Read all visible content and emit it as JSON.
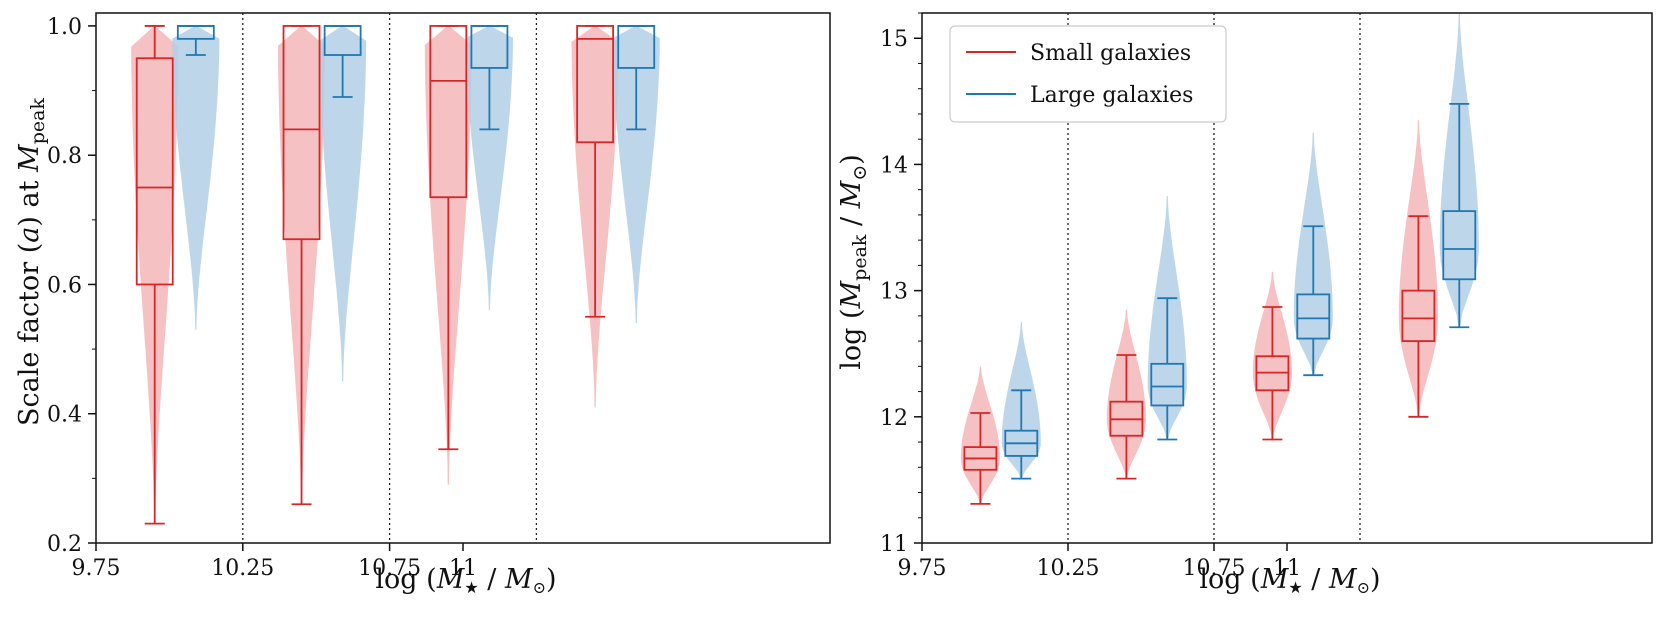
{
  "colors": {
    "small": "#d62728",
    "large": "#1f77b4",
    "small_fill": "#f4b6b8",
    "large_fill": "#b3cfe6"
  },
  "chart_data": [
    {
      "type": "box-violin",
      "xlabel": "log (M★/M⊙)",
      "xlabel_parts": {
        "pre": "log (",
        "m1": "M",
        "star": "★",
        "slash": " / ",
        "m2": "M",
        "sun": "⊙",
        "post": ")"
      },
      "ylabel": "Scale factor (a) at Mpeak",
      "ylabel_parts": {
        "pre": "Scale factor (",
        "a": "a",
        "mid": ") at ",
        "m": "M",
        "sub": "peak"
      },
      "xlim": [
        9.75,
        12.25
      ],
      "ylim": [
        0.2,
        1.02
      ],
      "x_ticks": [
        9.75,
        10.25,
        10.75,
        11
      ],
      "x_tick_labels": [
        "9.75",
        "10.25",
        "10.75",
        "11"
      ],
      "y_ticks": [
        0.2,
        0.4,
        0.6,
        0.8,
        1.0
      ],
      "y_tick_labels": [
        "0.2",
        "0.4",
        "0.6",
        "0.8",
        "1.0"
      ],
      "bin_edges": [
        10.25,
        10.75,
        11.25
      ],
      "series": [
        {
          "group": "small",
          "boxes": [
            {
              "x": 9.95,
              "min": 0.23,
              "q1": 0.6,
              "median": 0.75,
              "q3": 0.95,
              "max": 1.0,
              "violin_top": 1.0,
              "violin_bottom": 0.23
            },
            {
              "x": 10.45,
              "min": 0.26,
              "q1": 0.67,
              "median": 0.84,
              "q3": 1.0,
              "max": 1.0,
              "violin_top": 1.0,
              "violin_bottom": 0.26
            },
            {
              "x": 10.95,
              "min": 0.345,
              "q1": 0.735,
              "median": 0.915,
              "q3": 1.0,
              "max": 1.0,
              "violin_top": 1.0,
              "violin_bottom": 0.29
            },
            {
              "x": 11.45,
              "min": 0.55,
              "q1": 0.82,
              "median": 0.98,
              "q3": 1.0,
              "max": 1.0,
              "violin_top": 1.0,
              "violin_bottom": 0.41
            }
          ]
        },
        {
          "group": "large",
          "boxes": [
            {
              "x": 10.09,
              "min": 0.955,
              "q1": 0.98,
              "median": 1.0,
              "q3": 1.0,
              "max": 1.0,
              "violin_top": 1.0,
              "violin_bottom": 0.53
            },
            {
              "x": 10.59,
              "min": 0.89,
              "q1": 0.955,
              "median": 1.0,
              "q3": 1.0,
              "max": 1.0,
              "violin_top": 1.0,
              "violin_bottom": 0.45
            },
            {
              "x": 11.09,
              "min": 0.84,
              "q1": 0.935,
              "median": 1.0,
              "q3": 1.0,
              "max": 1.0,
              "violin_top": 1.0,
              "violin_bottom": 0.56
            },
            {
              "x": 11.59,
              "min": 0.84,
              "q1": 0.935,
              "median": 1.0,
              "q3": 1.0,
              "max": 1.0,
              "violin_top": 1.0,
              "violin_bottom": 0.54
            }
          ]
        }
      ]
    },
    {
      "type": "box-violin",
      "xlabel": "log (M★/M⊙)",
      "xlabel_parts": {
        "pre": "log (",
        "m1": "M",
        "star": "★",
        "slash": " / ",
        "m2": "M",
        "sun": "⊙",
        "post": ")"
      },
      "ylabel": "log (Mpeak/M⊙)",
      "ylabel_parts": {
        "pre": "log (",
        "m": "M",
        "sub": "peak",
        "slash": " / ",
        "m2": "M",
        "sun": "⊙",
        "post": ")"
      },
      "xlim": [
        9.75,
        12.25
      ],
      "ylim": [
        11,
        15.2
      ],
      "x_ticks": [
        9.75,
        10.25,
        10.75,
        11
      ],
      "x_tick_labels": [
        "9.75",
        "10.25",
        "10.75",
        "11"
      ],
      "y_ticks": [
        11,
        12,
        13,
        14,
        15
      ],
      "y_tick_labels": [
        "11",
        "12",
        "13",
        "14",
        "15"
      ],
      "bin_edges": [
        10.25,
        10.75,
        11.25
      ],
      "legend": {
        "position": "top-left",
        "entries": [
          {
            "group": "small",
            "label": "Small galaxies"
          },
          {
            "group": "large",
            "label": "Large galaxies"
          }
        ]
      },
      "series": [
        {
          "group": "small",
          "boxes": [
            {
              "x": 9.95,
              "min": 11.31,
              "q1": 11.58,
              "median": 11.67,
              "q3": 11.76,
              "max": 12.03,
              "violin_top": 12.4,
              "violin_bottom": 11.31
            },
            {
              "x": 10.45,
              "min": 11.51,
              "q1": 11.85,
              "median": 11.98,
              "q3": 12.12,
              "max": 12.49,
              "violin_top": 12.85,
              "violin_bottom": 11.51
            },
            {
              "x": 10.95,
              "min": 11.82,
              "q1": 12.21,
              "median": 12.35,
              "q3": 12.48,
              "max": 12.87,
              "violin_top": 13.15,
              "violin_bottom": 11.82
            },
            {
              "x": 11.45,
              "min": 12.0,
              "q1": 12.6,
              "median": 12.78,
              "q3": 13.0,
              "max": 13.59,
              "violin_top": 14.35,
              "violin_bottom": 12.0
            }
          ]
        },
        {
          "group": "large",
          "boxes": [
            {
              "x": 10.09,
              "min": 11.51,
              "q1": 11.69,
              "median": 11.79,
              "q3": 11.89,
              "max": 12.21,
              "violin_top": 12.75,
              "violin_bottom": 11.51
            },
            {
              "x": 10.59,
              "min": 11.82,
              "q1": 12.09,
              "median": 12.24,
              "q3": 12.42,
              "max": 12.94,
              "violin_top": 13.75,
              "violin_bottom": 11.82
            },
            {
              "x": 11.09,
              "min": 12.33,
              "q1": 12.62,
              "median": 12.78,
              "q3": 12.97,
              "max": 13.51,
              "violin_top": 14.25,
              "violin_bottom": 12.33
            },
            {
              "x": 11.59,
              "min": 12.71,
              "q1": 13.09,
              "median": 13.33,
              "q3": 13.63,
              "max": 14.48,
              "violin_top": 15.2,
              "violin_bottom": 12.71
            }
          ]
        }
      ]
    }
  ]
}
